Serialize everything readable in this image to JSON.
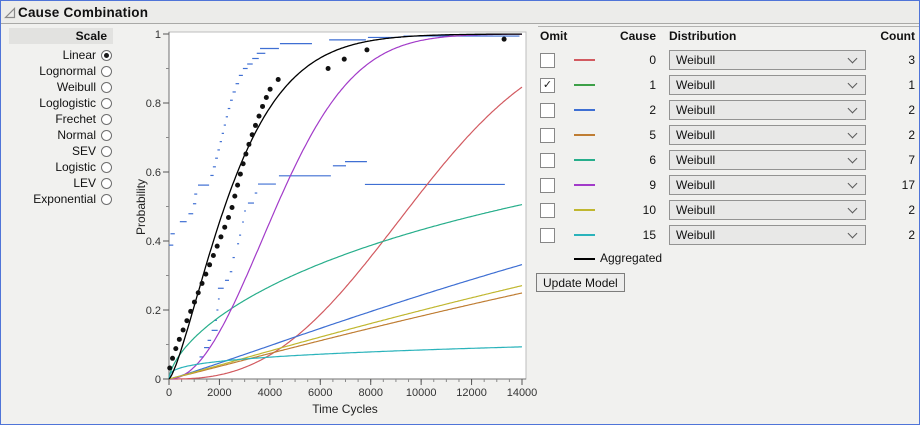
{
  "title": "Cause Combination",
  "icons": {
    "disclosure": "open-triangle",
    "checkmark": "✓",
    "dropdown": "chevron-down"
  },
  "scale_panel": {
    "header": "Scale",
    "options": [
      {
        "label": "Linear",
        "selected": true
      },
      {
        "label": "Lognormal",
        "selected": false
      },
      {
        "label": "Weibull",
        "selected": false
      },
      {
        "label": "Loglogistic",
        "selected": false
      },
      {
        "label": "Frechet",
        "selected": false
      },
      {
        "label": "Normal",
        "selected": false
      },
      {
        "label": "SEV",
        "selected": false
      },
      {
        "label": "Logistic",
        "selected": false
      },
      {
        "label": "LEV",
        "selected": false
      },
      {
        "label": "Exponential",
        "selected": false
      }
    ]
  },
  "chart_data": {
    "type": "line",
    "title": "",
    "xlabel": "Time Cycles",
    "ylabel": "Probability",
    "xlim": [
      0,
      14000
    ],
    "ylim": [
      0,
      1
    ],
    "x_ticks": [
      {
        "v": 0,
        "label": "0"
      },
      {
        "v": 2000,
        "label": "2000"
      },
      {
        "v": 4000,
        "label": "4000"
      },
      {
        "v": 6000,
        "label": "6000"
      },
      {
        "v": 8000,
        "label": "8000"
      },
      {
        "v": 10000,
        "label": "10000"
      },
      {
        "v": 12000,
        "label": "12000"
      },
      {
        "v": 14000,
        "label": "14000"
      }
    ],
    "y_ticks": [
      {
        "v": 0,
        "label": "0"
      },
      {
        "v": 0.2,
        "label": "0.2"
      },
      {
        "v": 0.4,
        "label": "0.4"
      },
      {
        "v": 0.6,
        "label": "0.6"
      },
      {
        "v": 0.8,
        "label": "0.8"
      },
      {
        "v": 1,
        "label": "1"
      }
    ],
    "x_minor_step": 500,
    "y_minor_step": 0.1,
    "grid": false,
    "curves": [
      {
        "name": "cause-0",
        "color": "#d25a60",
        "weibull": {
          "alpha": 11000,
          "beta": 2.6
        }
      },
      {
        "name": "cause-2",
        "color": "#3e6fd3",
        "weibull": {
          "alpha": 32000,
          "beta": 1.1
        }
      },
      {
        "name": "cause-5",
        "color": "#bf7d33",
        "weibull": {
          "alpha": 46000,
          "beta": 1.05
        }
      },
      {
        "name": "cause-6",
        "color": "#27ae8b",
        "weibull": {
          "alpha": 24000,
          "beta": 0.65
        }
      },
      {
        "name": "cause-9",
        "color": "#a23bc9",
        "weibull": {
          "alpha": 5100,
          "beta": 2.05
        }
      },
      {
        "name": "cause-10",
        "color": "#c0b72f",
        "weibull": {
          "alpha": 42000,
          "beta": 1.05
        }
      },
      {
        "name": "cause-15",
        "color": "#2ab3bb",
        "weibull": {
          "alpha": 20000000,
          "beta": 0.32
        }
      },
      {
        "name": "aggregated",
        "color": "#000000",
        "weibull": {
          "alpha": 2900,
          "beta": 1.35
        }
      }
    ],
    "nonparametric": {
      "points_color": "#111111",
      "points": [
        [
          30,
          0.032
        ],
        [
          140,
          0.06
        ],
        [
          270,
          0.088
        ],
        [
          410,
          0.115
        ],
        [
          560,
          0.142
        ],
        [
          710,
          0.169
        ],
        [
          860,
          0.196
        ],
        [
          1010,
          0.223
        ],
        [
          1160,
          0.25
        ],
        [
          1310,
          0.277
        ],
        [
          1460,
          0.304
        ],
        [
          1610,
          0.331
        ],
        [
          1760,
          0.358
        ],
        [
          1910,
          0.385
        ],
        [
          2060,
          0.412
        ],
        [
          2210,
          0.44
        ],
        [
          2360,
          0.468
        ],
        [
          2500,
          0.497
        ],
        [
          2610,
          0.53
        ],
        [
          2720,
          0.562
        ],
        [
          2830,
          0.594
        ],
        [
          2940,
          0.624
        ],
        [
          3050,
          0.652
        ],
        [
          3170,
          0.68
        ],
        [
          3300,
          0.708
        ],
        [
          3430,
          0.735
        ],
        [
          3570,
          0.762
        ],
        [
          3710,
          0.79
        ],
        [
          3860,
          0.816
        ],
        [
          4010,
          0.84
        ],
        [
          4330,
          0.868
        ],
        [
          6310,
          0.9
        ],
        [
          6950,
          0.927
        ],
        [
          7850,
          0.954
        ],
        [
          13290,
          0.985
        ]
      ],
      "band_color": "#3f6fd3",
      "upper_band_segments": [
        [
          0,
          170,
          0.388
        ],
        [
          60,
          230,
          0.421
        ],
        [
          430,
          700,
          0.456
        ],
        [
          770,
          960,
          0.479
        ],
        [
          950,
          1080,
          0.508
        ],
        [
          1000,
          1120,
          0.536
        ],
        [
          1150,
          1590,
          0.562
        ],
        [
          1640,
          1770,
          0.59
        ],
        [
          1740,
          1860,
          0.615
        ],
        [
          1830,
          1940,
          0.64
        ],
        [
          1920,
          2020,
          0.664
        ],
        [
          2010,
          2100,
          0.688
        ],
        [
          2090,
          2180,
          0.712
        ],
        [
          2170,
          2260,
          0.736
        ],
        [
          2250,
          2340,
          0.76
        ],
        [
          2330,
          2430,
          0.784
        ],
        [
          2420,
          2530,
          0.808
        ],
        [
          2520,
          2650,
          0.832
        ],
        [
          2640,
          2780,
          0.856
        ],
        [
          2770,
          2930,
          0.88
        ],
        [
          2930,
          3120,
          0.9
        ],
        [
          3100,
          3320,
          0.913
        ],
        [
          3300,
          3560,
          0.929
        ],
        [
          3480,
          3820,
          0.944
        ],
        [
          3610,
          4360,
          0.958
        ],
        [
          4400,
          5670,
          0.972
        ],
        [
          6350,
          7810,
          0.983
        ],
        [
          7890,
          9200,
          0.99
        ],
        [
          9300,
          13900,
          0.994
        ]
      ],
      "lower_band_segments": [
        [
          1210,
          1380,
          0.064
        ],
        [
          1390,
          1590,
          0.091
        ],
        [
          1530,
          1670,
          0.112
        ],
        [
          1690,
          1930,
          0.141
        ],
        [
          1800,
          1900,
          0.17
        ],
        [
          1880,
          1960,
          0.2
        ],
        [
          1940,
          2010,
          0.232
        ],
        [
          1940,
          2170,
          0.263
        ],
        [
          2220,
          2380,
          0.286
        ],
        [
          2410,
          2510,
          0.311
        ],
        [
          2520,
          2610,
          0.352
        ],
        [
          2700,
          2780,
          0.392
        ],
        [
          2780,
          2860,
          0.417
        ],
        [
          2900,
          2970,
          0.455
        ],
        [
          2980,
          3050,
          0.487
        ],
        [
          3130,
          3370,
          0.51
        ],
        [
          3400,
          3500,
          0.539
        ],
        [
          3530,
          4240,
          0.565
        ],
        [
          4360,
          6420,
          0.589
        ],
        [
          6500,
          7020,
          0.618
        ],
        [
          6980,
          7850,
          0.63
        ],
        [
          7770,
          13320,
          0.564
        ]
      ]
    }
  },
  "cause_table": {
    "headers": {
      "omit": "Omit",
      "cause": "Cause",
      "distribution": "Distribution",
      "count": "Count"
    },
    "rows": [
      {
        "cause": "0",
        "omitted": false,
        "color": "#d25a60",
        "distribution": "Weibull",
        "count": "3"
      },
      {
        "cause": "1",
        "omitted": true,
        "color": "#3da048",
        "distribution": "Weibull",
        "count": "1"
      },
      {
        "cause": "2",
        "omitted": false,
        "color": "#3e6fd3",
        "distribution": "Weibull",
        "count": "2"
      },
      {
        "cause": "5",
        "omitted": false,
        "color": "#bf7d33",
        "distribution": "Weibull",
        "count": "2"
      },
      {
        "cause": "6",
        "omitted": false,
        "color": "#27ae8b",
        "distribution": "Weibull",
        "count": "7"
      },
      {
        "cause": "9",
        "omitted": false,
        "color": "#a23bc9",
        "distribution": "Weibull",
        "count": "17"
      },
      {
        "cause": "10",
        "omitted": false,
        "color": "#c0b72f",
        "distribution": "Weibull",
        "count": "2"
      },
      {
        "cause": "15",
        "omitted": false,
        "color": "#2ab3bb",
        "distribution": "Weibull",
        "count": "2"
      }
    ],
    "aggregated_label": "Aggregated",
    "aggregated_color": "#000000"
  },
  "update_button_label": "Update Model"
}
